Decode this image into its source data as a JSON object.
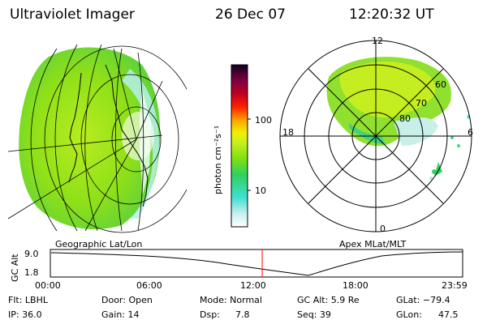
{
  "header": {
    "instrument": "Ultraviolet Imager",
    "date": "26 Dec 07",
    "time": "12:20:32 UT"
  },
  "colorbar": {
    "label": "photon cm⁻²s⁻¹",
    "ticks": [
      "100",
      "10"
    ]
  },
  "polar": {
    "mlt_labels": [
      "12",
      "18",
      "6",
      "0"
    ],
    "lat_labels": [
      "60",
      "70",
      "80"
    ]
  },
  "panels": {
    "left_label": "Geographic Lat/Lon",
    "right_label": "Apex MLat/MLT"
  },
  "altitude_plot": {
    "ylabel": "GC Alt",
    "y_ticks": [
      "9.0",
      "1.8"
    ],
    "x_ticks": [
      "00:00",
      "06:00",
      "12:00",
      "18:00",
      "23:59"
    ],
    "current_time_marker": "12:20"
  },
  "footer": {
    "flt": "Flt: LBHL",
    "ip": "IP: 36.0",
    "door": "Door: Open",
    "gain": "Gain: 14",
    "mode": "Mode: Normal",
    "dsp_label": "Dsp:",
    "dsp_value": "7.8",
    "gc_alt": "GC Alt: 5.9 Re",
    "seq": "Seq: 39",
    "glat": "GLat: −79.4",
    "glon_label": "GLon:",
    "glon_value": "47.5"
  },
  "colors": {
    "aurora_green": "#7fe010",
    "aurora_yellow": "#c8f020",
    "aurora_cyan": "#40e0d0",
    "marker": "#ff0000"
  }
}
